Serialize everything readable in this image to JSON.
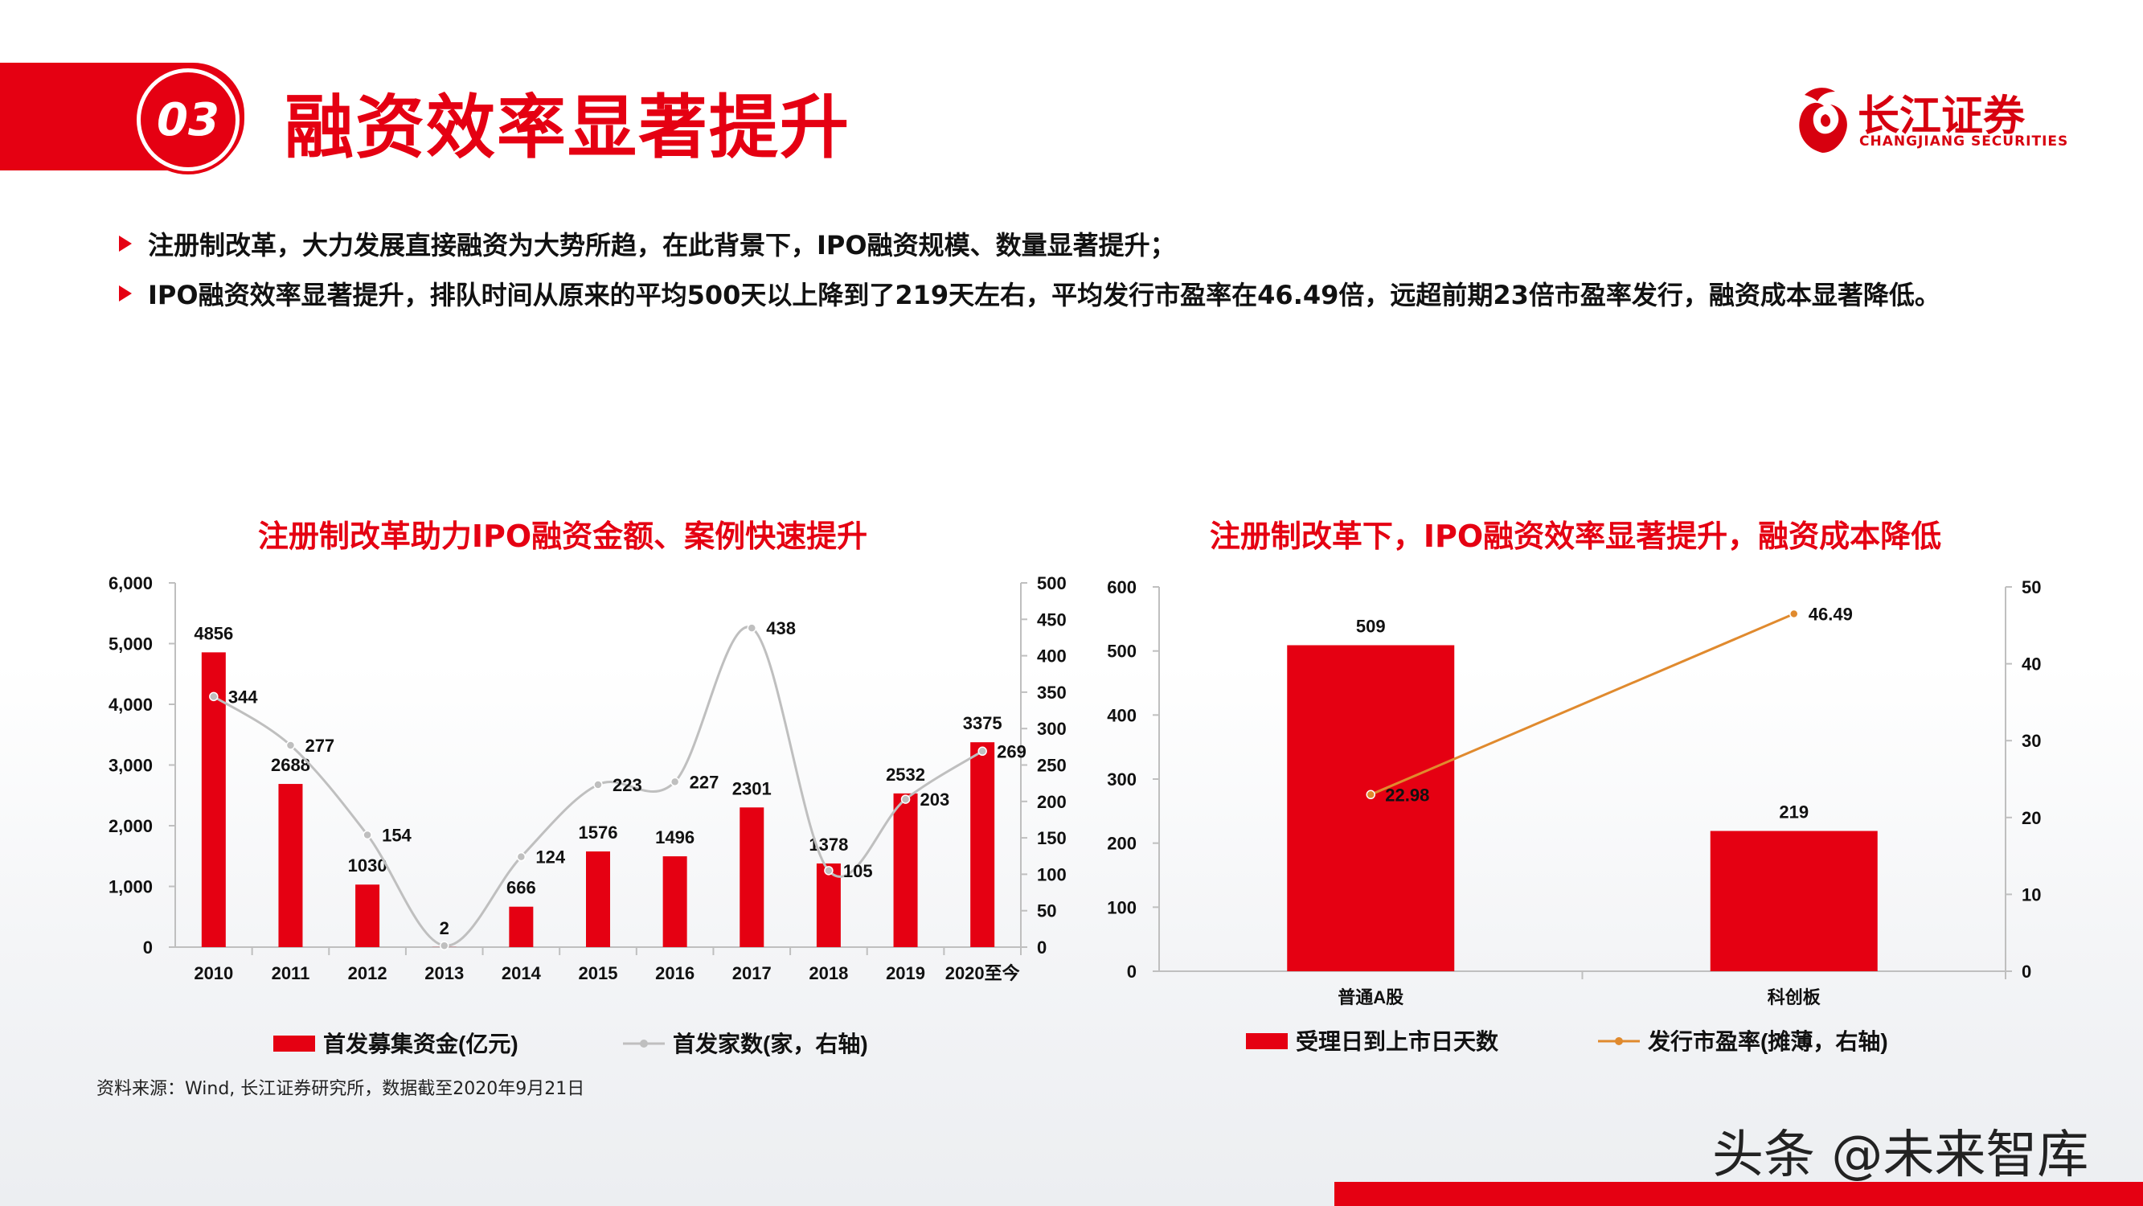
{
  "header": {
    "section_number": "03",
    "title": "融资效率显著提升",
    "logo_cn": "长江证券",
    "logo_en": "CHANGJIANG SECURITIES"
  },
  "bullets": [
    "注册制改革，大力发展直接融资为大势所趋，在此背景下，IPO融资规模、数量显著提升；",
    "IPO融资效率显著提升，排队时间从原来的平均500天以上降到了219天左右，平均发行市盈率在46.49倍，远超前期23倍市盈率发行，融资成本显著降低。"
  ],
  "source": "资料来源：Wind, 长江证券研究所，数据截至2020年9月21日",
  "watermark": "头条 @未来智库",
  "colors": {
    "accent": "#e50012",
    "line_gray": "#bfbfbf",
    "line_orange": "#e08a2e"
  },
  "chart_data": [
    {
      "type": "bar",
      "title": "注册制改革助力IPO融资金额、案例快速提升",
      "categories": [
        "2010",
        "2011",
        "2012",
        "2013",
        "2014",
        "2015",
        "2016",
        "2017",
        "2018",
        "2019",
        "2020至今"
      ],
      "series": [
        {
          "name": "首发募集资金(亿元)",
          "type": "bar",
          "axis": "left",
          "color": "#e50012",
          "values": [
            4856,
            2688,
            1030,
            2,
            666,
            1576,
            1496,
            2301,
            1378,
            2532,
            3375
          ],
          "labels": [
            "4856",
            "2688",
            "1030",
            "2",
            "666",
            "1576",
            "1496",
            "2301",
            "1378",
            "2532",
            "3375"
          ]
        },
        {
          "name": "首发家数(家，右轴)",
          "type": "line",
          "axis": "right",
          "color": "#bfbfbf",
          "smooth": true,
          "values": [
            344,
            277,
            154,
            2,
            124,
            223,
            227,
            438,
            105,
            203,
            269
          ],
          "labels": [
            "344",
            "277",
            "154",
            "",
            "124",
            "223",
            "227",
            "438",
            "105",
            "203",
            "269"
          ]
        }
      ],
      "y_left": {
        "min": 0,
        "max": 6000,
        "ticks": [
          "0",
          "1,000",
          "2,000",
          "3,000",
          "4,000",
          "5,000",
          "6,000"
        ]
      },
      "y_right": {
        "min": 0,
        "max": 500,
        "ticks": [
          "0",
          "50",
          "100",
          "150",
          "200",
          "250",
          "300",
          "350",
          "400",
          "450",
          "500"
        ]
      },
      "legend_position": "bottom",
      "grid": false
    },
    {
      "type": "bar",
      "title": "注册制改革下，IPO融资效率显著提升，融资成本降低",
      "categories": [
        "普通A股",
        "科创板"
      ],
      "series": [
        {
          "name": "受理日到上市日天数",
          "type": "bar",
          "axis": "left",
          "color": "#e50012",
          "values": [
            509,
            219
          ],
          "labels": [
            "509",
            "219"
          ]
        },
        {
          "name": "发行市盈率(摊薄，右轴)",
          "type": "line",
          "axis": "right",
          "color": "#e08a2e",
          "values": [
            22.98,
            46.49
          ],
          "labels": [
            "22.98",
            "46.49"
          ]
        }
      ],
      "y_left": {
        "min": 0,
        "max": 600,
        "ticks": [
          "0",
          "100",
          "200",
          "300",
          "400",
          "500",
          "600"
        ]
      },
      "y_right": {
        "min": 0,
        "max": 50,
        "ticks": [
          "0",
          "10",
          "20",
          "30",
          "40",
          "50"
        ]
      },
      "legend_position": "bottom",
      "grid": false
    }
  ]
}
